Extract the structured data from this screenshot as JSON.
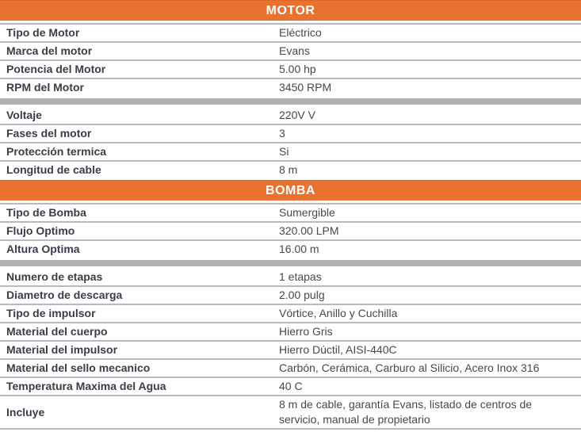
{
  "accent_color": "#ea7230",
  "separator_color": "#b9b9be",
  "group_separator_color": "#b2b2b4",
  "label_color": "#3c3c49",
  "value_color": "#47474f",
  "sections": [
    {
      "title": "MOTOR",
      "groups": [
        {
          "rows": [
            {
              "label": "Tipo de Motor",
              "value": "Eléctrico"
            },
            {
              "label": "Marca del motor",
              "value": "Evans"
            },
            {
              "label": "Potencia del Motor",
              "value": "5.00 hp"
            },
            {
              "label": "RPM del Motor",
              "value": "3450 RPM"
            }
          ]
        },
        {
          "rows": [
            {
              "label": "Voltaje",
              "value": "220V V"
            },
            {
              "label": "Fases del motor",
              "value": "3"
            },
            {
              "label": "Protección termica",
              "value": "Si"
            },
            {
              "label": "Longitud de cable",
              "value": "8 m"
            }
          ]
        }
      ]
    },
    {
      "title": "BOMBA",
      "groups": [
        {
          "rows": [
            {
              "label": "Tipo de Bomba",
              "value": "Sumergible"
            },
            {
              "label": "Flujo Optimo",
              "value": "320.00 LPM"
            },
            {
              "label": "Altura Optima",
              "value": "16.00 m"
            }
          ]
        },
        {
          "rows": [
            {
              "label": "Numero de etapas",
              "value": "1 etapas"
            },
            {
              "label": "Diametro de descarga",
              "value": "2.00 pulg"
            },
            {
              "label": "Tipo de impulsor",
              "value": "Vórtice, Anillo y Cuchilla"
            },
            {
              "label": "Material del cuerpo",
              "value": "Hierro Gris"
            },
            {
              "label": "Material del impulsor",
              "value": "Hierro Dúctil, AISI-440C"
            },
            {
              "label": "Material del sello mecanico",
              "value": "Carbón, Cerámica, Carburo al Silicio, Acero Inox 316"
            },
            {
              "label": "Temperatura Maxima del Agua",
              "value": "40 C"
            },
            {
              "label": "Incluye",
              "value": "8 m de cable, garantía Evans, listado de centros de\nservicio, manual de propietario"
            }
          ]
        }
      ]
    }
  ]
}
